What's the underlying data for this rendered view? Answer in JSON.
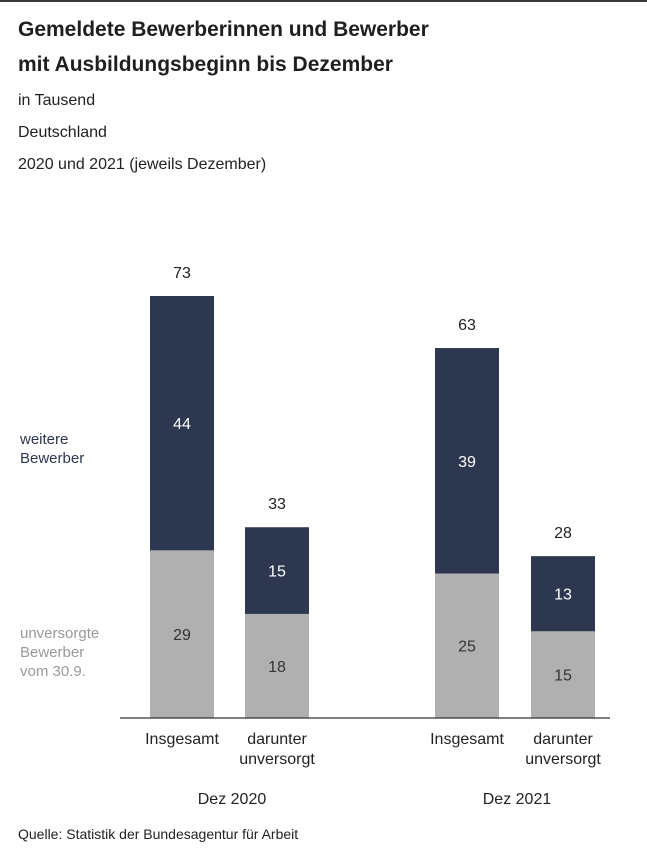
{
  "header": {
    "title_line1": "Gemeldete Bewerberinnen und Bewerber",
    "title_line2": "mit Ausbildungsbeginn bis Dezember",
    "subtitle_unit": "in Tausend",
    "subtitle_region": "Deutschland",
    "subtitle_period": "2020 und 2021 (jeweils Dezember)"
  },
  "legend": {
    "top_line1": "weitere",
    "top_line2": "Bewerber",
    "bottom_line1": "unversorgte",
    "bottom_line2": "Bewerber",
    "bottom_line3": "vom 30.9."
  },
  "colors": {
    "top_segment": "#2e3750",
    "bottom_segment": "#b0b0b0",
    "legend_top_text": "#2e3750",
    "legend_bottom_text": "#9a9a9a"
  },
  "source": "Quelle: Statistik der Bundesagentur für Arbeit",
  "chart_data": {
    "type": "bar",
    "stacked": true,
    "groups": [
      "Dez 2020",
      "Dez 2021"
    ],
    "categories": [
      [
        "Insgesamt",
        ""
      ],
      [
        "darunter",
        "unversorgt"
      ],
      [
        "Insgesamt",
        ""
      ],
      [
        "darunter",
        "unversorgt"
      ]
    ],
    "series": [
      {
        "name": "unversorgte Bewerber vom 30.9.",
        "values": [
          29,
          18,
          25,
          15
        ]
      },
      {
        "name": "weitere Bewerber",
        "values": [
          44,
          15,
          39,
          13
        ]
      }
    ],
    "totals": [
      73,
      33,
      63,
      28
    ],
    "ylim": [
      0,
      73
    ]
  }
}
